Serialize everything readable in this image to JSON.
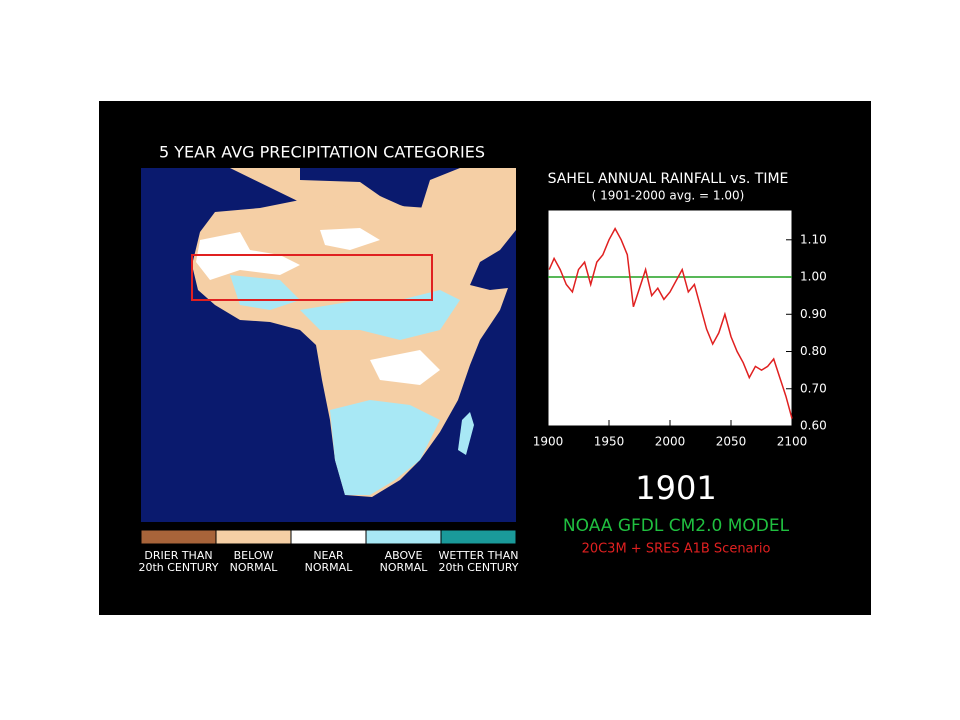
{
  "map": {
    "title": "5 YEAR AVG PRECIPITATION CATEGORIES",
    "legend": [
      {
        "label_lines": [
          "DRIER THAN",
          "20th CENTURY"
        ],
        "color": "#a8643a"
      },
      {
        "label_lines": [
          "BELOW",
          "NORMAL"
        ],
        "color": "#f5cfa5"
      },
      {
        "label_lines": [
          "NEAR",
          "NORMAL"
        ],
        "color": "#ffffff"
      },
      {
        "label_lines": [
          "ABOVE",
          "NORMAL"
        ],
        "color": "#a8e8f5"
      },
      {
        "label_lines": [
          "WETTER THAN",
          "20th CENTURY"
        ],
        "color": "#1a9a9a"
      }
    ]
  },
  "chart_data": {
    "type": "line",
    "title": "SAHEL ANNUAL RAINFALL vs. TIME",
    "subtitle": "( 1901-2000 avg. = 1.00)",
    "x": [
      1901,
      1905,
      1910,
      1915,
      1920,
      1925,
      1930,
      1935,
      1940,
      1945,
      1950,
      1955,
      1960,
      1965,
      1970,
      1975,
      1980,
      1985,
      1990,
      1995,
      2000,
      2005,
      2010,
      2015,
      2020,
      2025,
      2030,
      2035,
      2040,
      2045,
      2050,
      2055,
      2060,
      2065,
      2070,
      2075,
      2080,
      2085,
      2090,
      2095,
      2100
    ],
    "values": [
      1.02,
      1.05,
      1.02,
      0.98,
      0.96,
      1.02,
      1.04,
      0.98,
      1.04,
      1.06,
      1.1,
      1.13,
      1.1,
      1.06,
      0.92,
      0.97,
      1.02,
      0.95,
      0.97,
      0.94,
      0.96,
      0.99,
      1.02,
      0.96,
      0.98,
      0.92,
      0.86,
      0.82,
      0.85,
      0.9,
      0.84,
      0.8,
      0.77,
      0.73,
      0.76,
      0.75,
      0.76,
      0.78,
      0.73,
      0.68,
      0.62
    ],
    "color": "#e02020",
    "reference_line": {
      "value": 1.0,
      "color": "#20a020"
    },
    "xlim": [
      1900,
      2100
    ],
    "ylim": [
      0.6,
      1.18
    ],
    "xticks": [
      1900,
      1950,
      2000,
      2050,
      2100
    ],
    "yticks": [
      {
        "value": 0.6,
        "label": "0.60"
      },
      {
        "value": 0.7,
        "label": "0.70"
      },
      {
        "value": 0.8,
        "label": "0.80"
      },
      {
        "value": 0.9,
        "label": "0.90"
      },
      {
        "value": 1.0,
        "label": "1.00"
      },
      {
        "value": 1.1,
        "label": "1.10"
      }
    ]
  },
  "year_display": "1901",
  "footer": {
    "model": "NOAA GFDL CM2.0 MODEL",
    "scenario": "20C3M + SRES A1B Scenario"
  }
}
